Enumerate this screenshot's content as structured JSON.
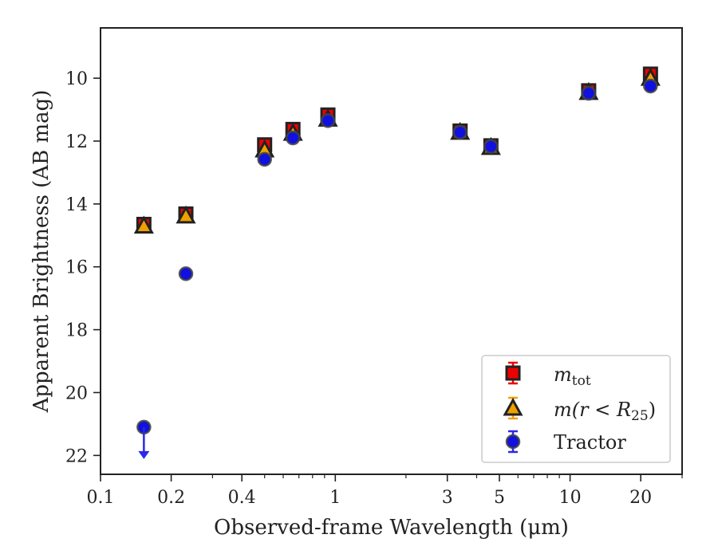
{
  "chart_data": {
    "type": "scatter",
    "xlabel": "Observed-frame Wavelength (μm)",
    "ylabel": "Apparent Brightness (AB mag)",
    "x_scale": "log",
    "xlim": [
      0.1,
      30
    ],
    "ylim": [
      22.6,
      8.4
    ],
    "y_inverted": true,
    "grid": false,
    "legend_position": "lower-right",
    "x_ticks": [
      {
        "value": 0.1,
        "label": "0.1"
      },
      {
        "value": 0.2,
        "label": "0.2"
      },
      {
        "value": 0.4,
        "label": "0.4"
      },
      {
        "value": 1,
        "label": "1"
      },
      {
        "value": 3,
        "label": "3"
      },
      {
        "value": 5,
        "label": "5"
      },
      {
        "value": 10,
        "label": "10"
      },
      {
        "value": 20,
        "label": "20"
      }
    ],
    "y_ticks": [
      {
        "value": 10,
        "label": "10"
      },
      {
        "value": 12,
        "label": "12"
      },
      {
        "value": 14,
        "label": "14"
      },
      {
        "value": 16,
        "label": "16"
      },
      {
        "value": 18,
        "label": "18"
      },
      {
        "value": 20,
        "label": "20"
      },
      {
        "value": 22,
        "label": "22"
      }
    ],
    "series": [
      {
        "label_main": "m",
        "label_sub": "tot",
        "marker": "square",
        "face_color": "#ee0000",
        "edge_color": "#222222",
        "points": [
          {
            "x": 0.153,
            "y": 14.65
          },
          {
            "x": 0.231,
            "y": 14.32
          },
          {
            "x": 0.5,
            "y": 12.12
          },
          {
            "x": 0.66,
            "y": 11.63
          },
          {
            "x": 0.93,
            "y": 11.17
          },
          {
            "x": 3.4,
            "y": 11.68
          },
          {
            "x": 4.6,
            "y": 12.15
          },
          {
            "x": 12.0,
            "y": 10.4
          },
          {
            "x": 22.0,
            "y": 9.87
          }
        ]
      },
      {
        "label_main": "m",
        "label_paren": "(r < R",
        "label_sub": "25",
        "label_close": ")",
        "marker": "triangle",
        "face_color": "#f0a000",
        "edge_color": "#222222",
        "points": [
          {
            "x": 0.153,
            "y": 14.7
          },
          {
            "x": 0.231,
            "y": 14.38
          },
          {
            "x": 0.5,
            "y": 12.28
          },
          {
            "x": 0.66,
            "y": 11.75
          },
          {
            "x": 0.93,
            "y": 11.3
          },
          {
            "x": 3.4,
            "y": 11.72
          },
          {
            "x": 4.6,
            "y": 12.2
          },
          {
            "x": 12.0,
            "y": 10.45
          },
          {
            "x": 22.0,
            "y": 10.0
          }
        ]
      },
      {
        "label": "Tractor",
        "marker": "circle",
        "face_color": "#1010e0",
        "edge_color": "#444444",
        "points": [
          {
            "x": 0.153,
            "y": 21.1,
            "upper_limit": true
          },
          {
            "x": 0.231,
            "y": 16.22
          },
          {
            "x": 0.5,
            "y": 12.58
          },
          {
            "x": 0.66,
            "y": 11.9
          },
          {
            "x": 0.93,
            "y": 11.35
          },
          {
            "x": 3.4,
            "y": 11.72
          },
          {
            "x": 4.6,
            "y": 12.17
          },
          {
            "x": 12.0,
            "y": 10.48
          },
          {
            "x": 22.0,
            "y": 10.25
          }
        ]
      }
    ]
  }
}
